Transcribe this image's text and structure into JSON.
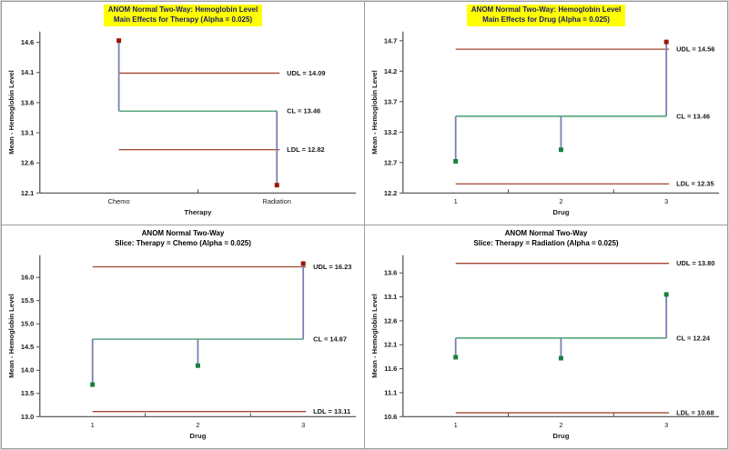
{
  "colors": {
    "limit_line": "#a3452f",
    "center_line": "#1f8a57",
    "needle_line": "#7781ad",
    "point_in_control": "#17803a",
    "point_out_of_limits": "#9b1507",
    "axis_line": "#4a4a4a",
    "text": "#1a1a1a",
    "title_highlight_bg": "#ffff00",
    "title_highlight_text": "#191970",
    "title_plain_text": "#000000",
    "panel_border": "#999999"
  },
  "chart_data": [
    {
      "type": "scatter",
      "subtype": "anom-decision-chart",
      "title": "ANOM Normal Two-Way: Hemoglobin Level",
      "subtitle": "Main Effects for Therapy (Alpha = 0.025)",
      "title_highlighted": true,
      "xlabel": "Therapy",
      "ylabel": "Mean - Hemoglobin Level",
      "categories": [
        "Chemo",
        "Radiation"
      ],
      "values": [
        14.63,
        12.23
      ],
      "point_status": [
        "out-of-limits",
        "out-of-limits"
      ],
      "limits": {
        "udl": 14.09,
        "cl": 13.46,
        "ldl": 12.82
      },
      "limit_labels": {
        "udl": "UDL = 14.09",
        "cl": "CL = 13.46",
        "ldl": "LDL = 12.82"
      },
      "yticks": [
        "14.6",
        "14.1",
        "13.6",
        "13.1",
        "12.6",
        "12.1"
      ],
      "ylim": [
        12.1,
        14.78
      ],
      "grid": false,
      "legend": "none"
    },
    {
      "type": "scatter",
      "subtype": "anom-decision-chart",
      "title": "ANOM Normal Two-Way: Hemoglobin Level",
      "subtitle": "Main Effects for Drug (Alpha = 0.025)",
      "title_highlighted": true,
      "xlabel": "Drug",
      "ylabel": "Mean - Hemoglobin Level",
      "categories": [
        "1",
        "2",
        "3"
      ],
      "values": [
        12.72,
        12.91,
        14.68
      ],
      "point_status": [
        "in-control",
        "in-control",
        "out-of-limits"
      ],
      "limits": {
        "udl": 14.56,
        "cl": 13.46,
        "ldl": 12.35
      },
      "limit_labels": {
        "udl": "UDL = 14.56",
        "cl": "CL = 13.46",
        "ldl": "LDL = 12.35"
      },
      "yticks": [
        "14.7",
        "14.2",
        "13.7",
        "13.2",
        "12.7",
        "12.2"
      ],
      "ylim": [
        12.2,
        14.85
      ],
      "grid": false,
      "legend": "none"
    },
    {
      "type": "scatter",
      "subtype": "anom-decision-chart",
      "title": "ANOM Normal Two-Way",
      "subtitle": "Slice: Therapy = Chemo (Alpha = 0.025)",
      "title_highlighted": false,
      "xlabel": "Drug",
      "ylabel": "Mean - Hemoglobin Level",
      "categories": [
        "1",
        "2",
        "3"
      ],
      "values": [
        13.69,
        14.1,
        16.3
      ],
      "point_status": [
        "in-control",
        "in-control",
        "out-of-limits"
      ],
      "limits": {
        "udl": 16.23,
        "cl": 14.67,
        "ldl": 13.11
      },
      "limit_labels": {
        "udl": "UDL = 16.23",
        "cl": "CL = 14.67",
        "ldl": "LDL = 13.11"
      },
      "yticks": [
        "16.0",
        "15.5",
        "15.0",
        "14.5",
        "14.0",
        "13.5",
        "13.0"
      ],
      "ylim": [
        13.0,
        16.48
      ],
      "grid": false,
      "legend": "none"
    },
    {
      "type": "scatter",
      "subtype": "anom-decision-chart",
      "title": "ANOM Normal Two-Way",
      "subtitle": "Slice: Therapy = Radiation (Alpha = 0.025)",
      "title_highlighted": false,
      "xlabel": "Drug",
      "ylabel": "Mean - Hemoglobin Level",
      "categories": [
        "1",
        "2",
        "3"
      ],
      "values": [
        11.84,
        11.82,
        13.15
      ],
      "point_status": [
        "in-control",
        "in-control",
        "in-control"
      ],
      "limits": {
        "udl": 13.8,
        "cl": 12.24,
        "ldl": 10.68
      },
      "limit_labels": {
        "udl": "UDL = 13.80",
        "cl": "CL = 12.24",
        "ldl": "LDL = 10.68"
      },
      "yticks": [
        "13.6",
        "13.1",
        "12.6",
        "12.1",
        "11.6",
        "11.1",
        "10.6"
      ],
      "ylim": [
        10.6,
        13.97
      ],
      "grid": false,
      "legend": "none"
    }
  ]
}
